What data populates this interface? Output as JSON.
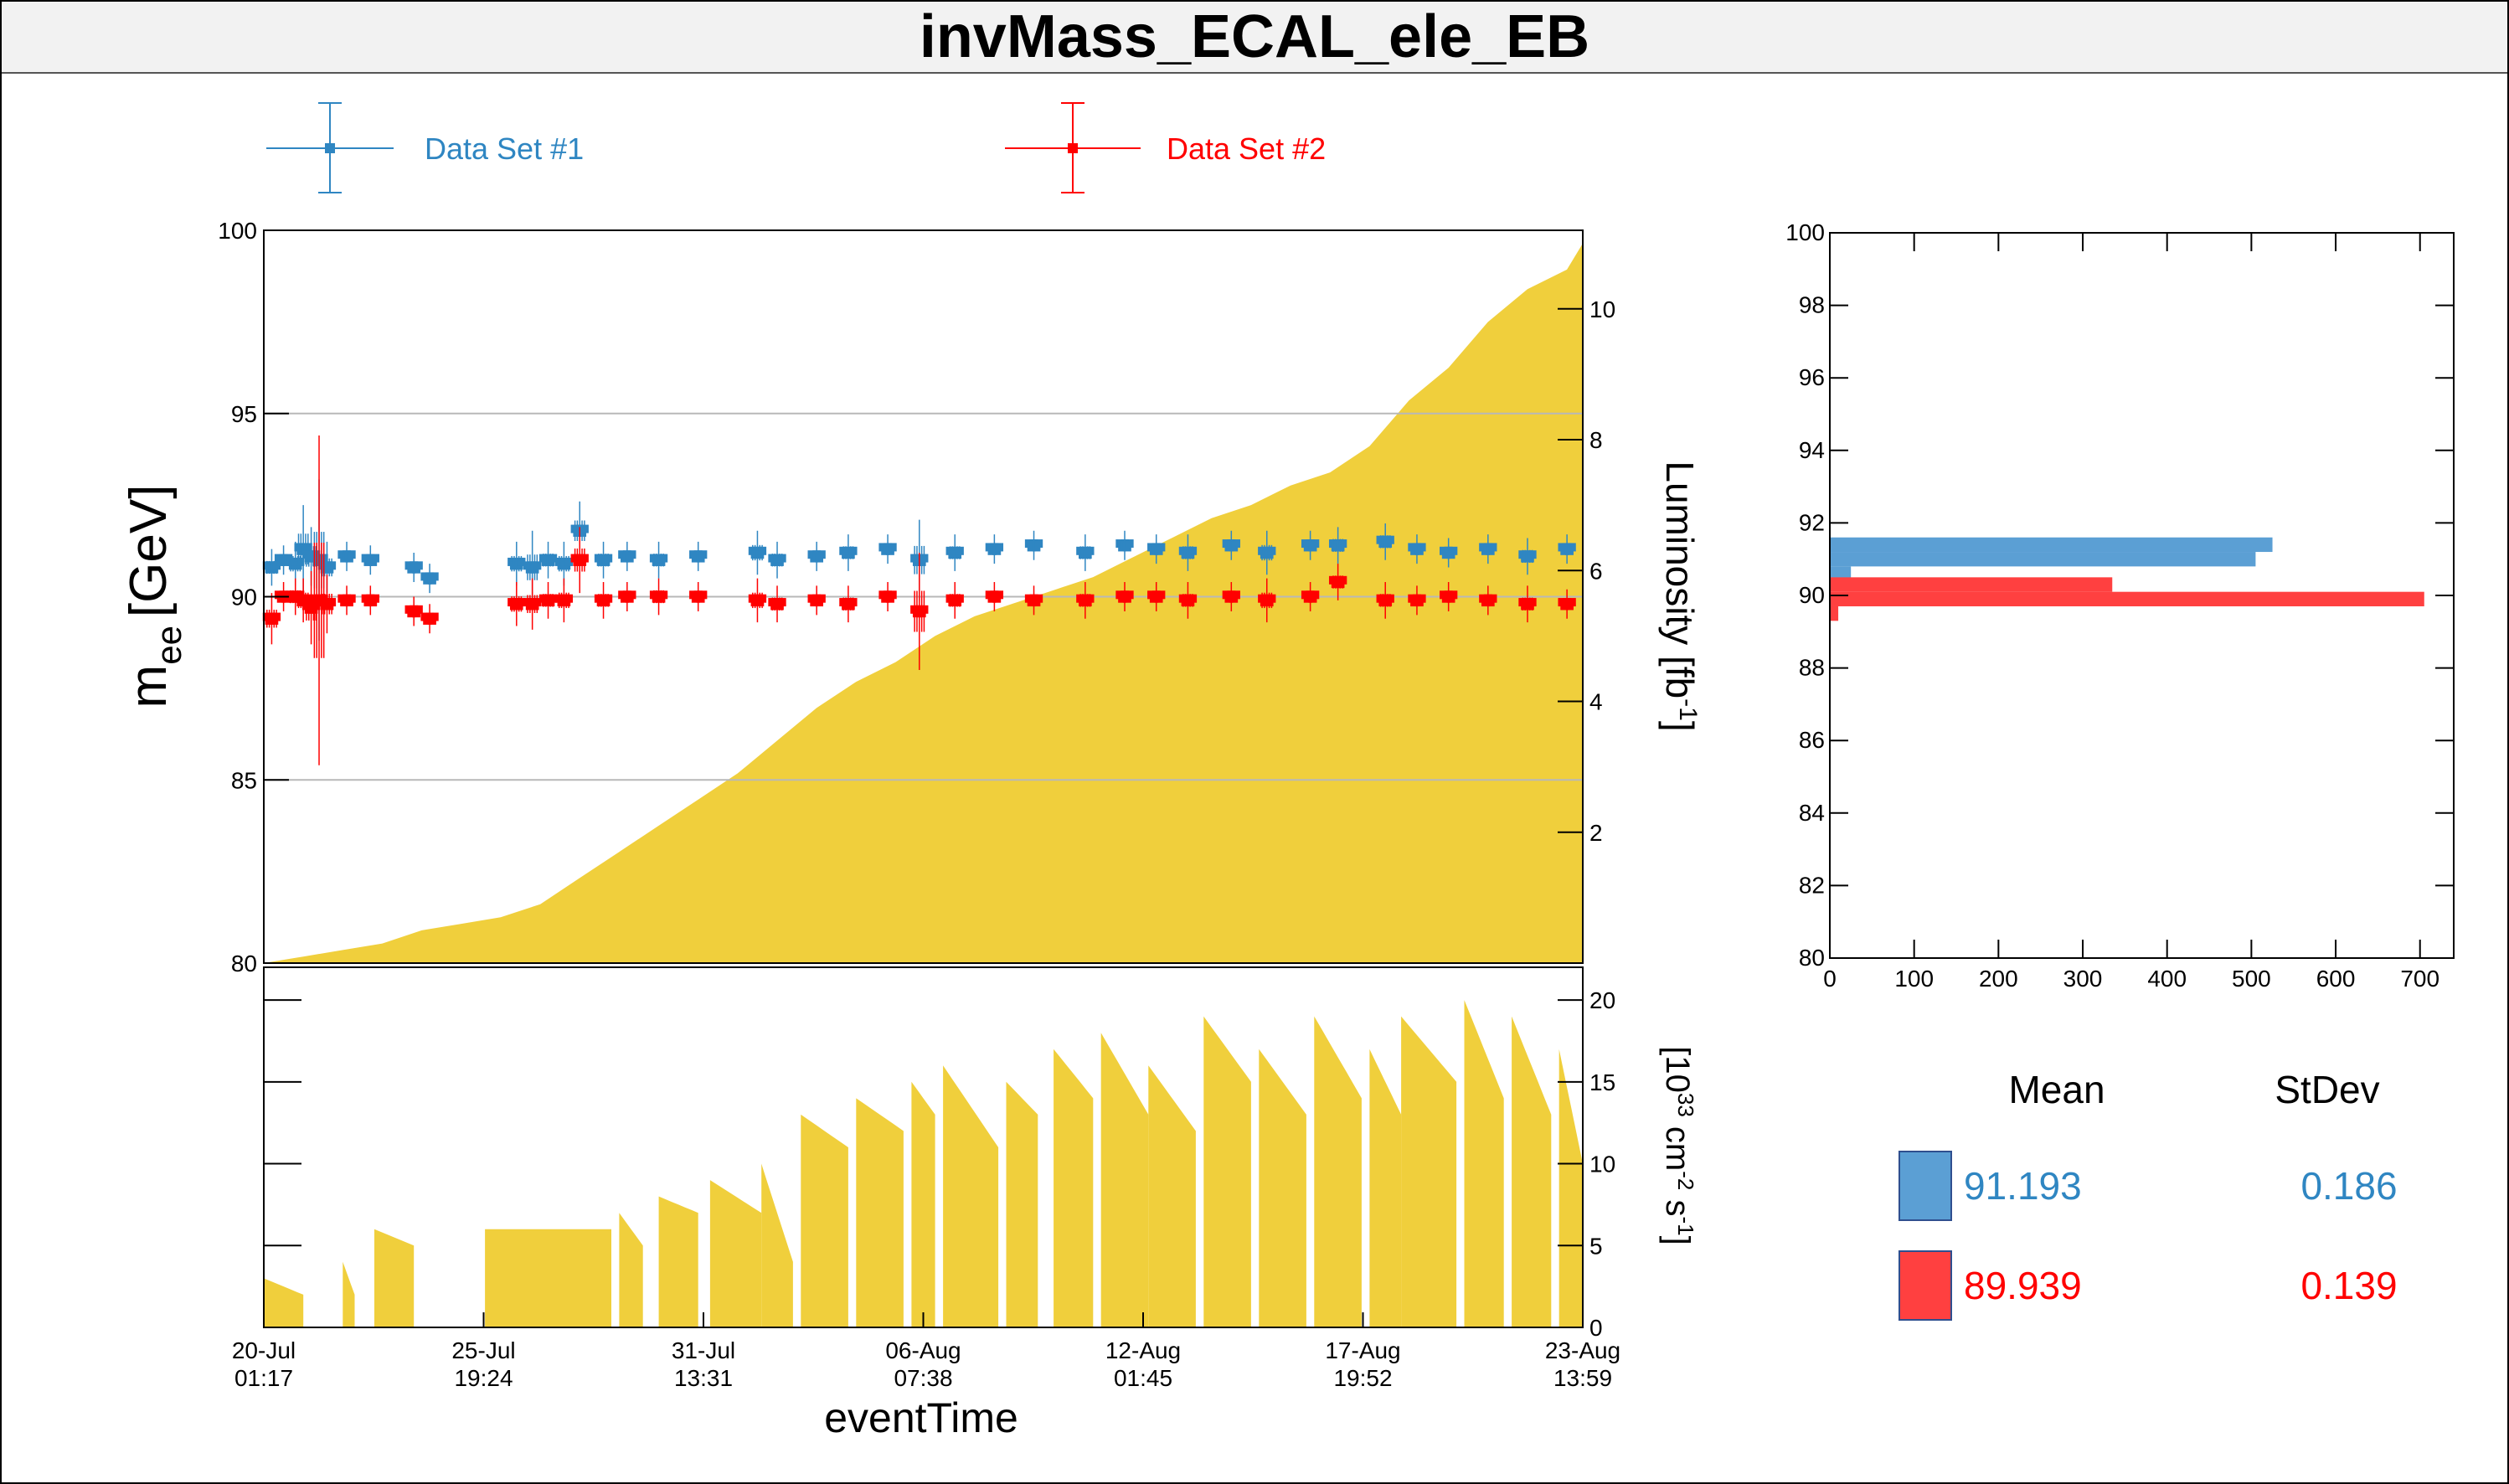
{
  "title": "invMass_ECAL_ele_EB",
  "colors": {
    "set1": "#2f86c2",
    "set1_hist": "#5b9fd4",
    "set2": "#ff0000",
    "set2_hist": "#ff4040",
    "luminosity": "#f0cf3c"
  },
  "legend": [
    {
      "label": "Data Set #1",
      "color": "#2f86c2"
    },
    {
      "label": "Data Set #2",
      "color": "#ff0000"
    }
  ],
  "stats": {
    "mean_header": "Mean",
    "stdev_header": "StDev",
    "rows": [
      {
        "mean": "91.193",
        "stdev": "0.186",
        "color": "#2f86c2"
      },
      {
        "mean": "89.939",
        "stdev": "0.139",
        "color": "#ff0000"
      }
    ]
  },
  "chart_data": [
    {
      "type": "scatter",
      "name": "mass-vs-time",
      "xlabel": "eventTime",
      "ylabel_main": "m",
      "ylabel_sub": "ee",
      "ylabel_unit": "[GeV]",
      "ylim": [
        80,
        100
      ],
      "yticks": [
        "100",
        "95",
        "90",
        "85",
        "80"
      ],
      "x_ticks": [
        {
          "date": "20-Jul",
          "time": "01:17"
        },
        {
          "date": "25-Jul",
          "time": "19:24"
        },
        {
          "date": "31-Jul",
          "time": "13:31"
        },
        {
          "date": "06-Aug",
          "time": "07:38"
        },
        {
          "date": "12-Aug",
          "time": "01:45"
        },
        {
          "date": "17-Aug",
          "time": "19:52"
        },
        {
          "date": "23-Aug",
          "time": "13:59"
        }
      ],
      "series": [
        {
          "name": "Data Set #1",
          "mean": 91.1,
          "spread": 0.18,
          "points": [
            [
              0.2,
              90.8,
              0.5
            ],
            [
              0.5,
              91.0,
              0.4
            ],
            [
              0.8,
              90.9,
              0.6
            ],
            [
              1.0,
              91.3,
              1.2
            ],
            [
              1.2,
              91.1,
              0.8
            ],
            [
              1.4,
              91.0,
              2.2
            ],
            [
              1.6,
              90.8,
              0.7
            ],
            [
              2.1,
              91.1,
              0.4
            ],
            [
              2.7,
              91.0,
              0.4
            ],
            [
              3.8,
              90.8,
              0.4
            ],
            [
              4.2,
              90.5,
              0.4
            ],
            [
              6.4,
              90.9,
              0.6
            ],
            [
              6.8,
              90.8,
              1.0
            ],
            [
              7.2,
              91.0,
              0.5
            ],
            [
              7.6,
              90.9,
              0.6
            ],
            [
              8.0,
              91.8,
              0.8
            ],
            [
              8.6,
              91.0,
              0.5
            ],
            [
              9.2,
              91.1,
              0.4
            ],
            [
              10.0,
              91.0,
              0.5
            ],
            [
              11.0,
              91.1,
              0.4
            ],
            [
              12.5,
              91.2,
              0.6
            ],
            [
              13.0,
              91.0,
              0.5
            ],
            [
              14.0,
              91.1,
              0.4
            ],
            [
              14.8,
              91.2,
              0.5
            ],
            [
              15.8,
              91.3,
              0.4
            ],
            [
              16.6,
              91.0,
              1.1
            ],
            [
              17.5,
              91.2,
              0.5
            ],
            [
              18.5,
              91.3,
              0.4
            ],
            [
              19.5,
              91.4,
              0.4
            ],
            [
              20.8,
              91.2,
              0.5
            ],
            [
              21.8,
              91.4,
              0.4
            ],
            [
              22.6,
              91.3,
              0.4
            ],
            [
              23.4,
              91.2,
              0.5
            ],
            [
              24.5,
              91.4,
              0.4
            ],
            [
              25.4,
              91.2,
              0.6
            ],
            [
              26.5,
              91.4,
              0.4
            ],
            [
              27.2,
              91.4,
              0.5
            ],
            [
              28.4,
              91.5,
              0.5
            ],
            [
              29.2,
              91.3,
              0.4
            ],
            [
              30.0,
              91.2,
              0.4
            ],
            [
              31.0,
              91.3,
              0.4
            ],
            [
              32.0,
              91.1,
              0.5
            ],
            [
              33.0,
              91.3,
              0.4
            ]
          ]
        },
        {
          "name": "Data Set #2",
          "mean": 89.9,
          "spread": 0.14,
          "points": [
            [
              0.2,
              89.4,
              0.7
            ],
            [
              0.5,
              90.0,
              0.4
            ],
            [
              0.8,
              90.0,
              0.5
            ],
            [
              1.0,
              89.9,
              0.6
            ],
            [
              1.2,
              89.7,
              1.0
            ],
            [
              1.4,
              89.9,
              4.5
            ],
            [
              1.6,
              89.8,
              0.8
            ],
            [
              2.1,
              89.9,
              0.4
            ],
            [
              2.7,
              89.9,
              0.4
            ],
            [
              3.8,
              89.6,
              0.4
            ],
            [
              4.2,
              89.4,
              0.4
            ],
            [
              6.4,
              89.8,
              0.6
            ],
            [
              6.8,
              89.8,
              0.7
            ],
            [
              7.2,
              89.9,
              0.5
            ],
            [
              7.6,
              89.9,
              0.6
            ],
            [
              8.0,
              91.0,
              0.9
            ],
            [
              8.6,
              89.9,
              0.5
            ],
            [
              9.2,
              90.0,
              0.4
            ],
            [
              10.0,
              90.0,
              0.5
            ],
            [
              11.0,
              90.0,
              0.4
            ],
            [
              12.5,
              89.9,
              0.6
            ],
            [
              13.0,
              89.8,
              0.5
            ],
            [
              14.0,
              89.9,
              0.4
            ],
            [
              14.8,
              89.8,
              0.5
            ],
            [
              15.8,
              90.0,
              0.4
            ],
            [
              16.6,
              89.6,
              1.6
            ],
            [
              17.5,
              89.9,
              0.5
            ],
            [
              18.5,
              90.0,
              0.4
            ],
            [
              19.5,
              89.9,
              0.4
            ],
            [
              20.8,
              89.9,
              0.5
            ],
            [
              21.8,
              90.0,
              0.4
            ],
            [
              22.6,
              90.0,
              0.4
            ],
            [
              23.4,
              89.9,
              0.5
            ],
            [
              24.5,
              90.0,
              0.4
            ],
            [
              25.4,
              89.9,
              0.6
            ],
            [
              26.5,
              90.0,
              0.4
            ],
            [
              27.2,
              90.4,
              0.5
            ],
            [
              28.4,
              89.9,
              0.5
            ],
            [
              29.2,
              89.9,
              0.4
            ],
            [
              30.0,
              90.0,
              0.4
            ],
            [
              31.0,
              89.9,
              0.4
            ],
            [
              32.0,
              89.8,
              0.5
            ],
            [
              33.0,
              89.8,
              0.4
            ]
          ]
        }
      ]
    },
    {
      "type": "area",
      "name": "integrated-luminosity",
      "ylabel": "Luminosity [fb",
      "ylabel_sup": "-1",
      "ylabel_close": "]",
      "ylim": [
        0,
        11.2
      ],
      "yticks": [
        "2",
        "4",
        "6",
        "8",
        "10"
      ],
      "points": [
        [
          0,
          0
        ],
        [
          1,
          0.1
        ],
        [
          2,
          0.2
        ],
        [
          3,
          0.3
        ],
        [
          4,
          0.5
        ],
        [
          5,
          0.6
        ],
        [
          6,
          0.7
        ],
        [
          7,
          0.9
        ],
        [
          8,
          1.3
        ],
        [
          9,
          1.7
        ],
        [
          10,
          2.1
        ],
        [
          11,
          2.5
        ],
        [
          12,
          2.9
        ],
        [
          13,
          3.4
        ],
        [
          14,
          3.9
        ],
        [
          15,
          4.3
        ],
        [
          16,
          4.6
        ],
        [
          17,
          5.0
        ],
        [
          18,
          5.3
        ],
        [
          19,
          5.5
        ],
        [
          20,
          5.7
        ],
        [
          21,
          5.9
        ],
        [
          22,
          6.2
        ],
        [
          23,
          6.5
        ],
        [
          24,
          6.8
        ],
        [
          25,
          7.0
        ],
        [
          26,
          7.3
        ],
        [
          27,
          7.5
        ],
        [
          28,
          7.9
        ],
        [
          29,
          8.6
        ],
        [
          30,
          9.1
        ],
        [
          31,
          9.8
        ],
        [
          32,
          10.3
        ],
        [
          33,
          10.6
        ],
        [
          33.4,
          11.0
        ]
      ]
    },
    {
      "type": "area",
      "name": "instantaneous-luminosity",
      "ylabel_base": "[10",
      "ylabel_sup1": "33",
      "ylabel_mid": " cm",
      "ylabel_sup2": "-2",
      "ylabel_s": " s",
      "ylabel_sup3": "-1",
      "ylabel_close": "]",
      "ylim": [
        0,
        22
      ],
      "yticks": [
        "0",
        "5",
        "10",
        "15",
        "20"
      ],
      "segments": [
        [
          0.0,
          1.0,
          3,
          2
        ],
        [
          2.0,
          2.3,
          4,
          2
        ],
        [
          2.8,
          3.8,
          6,
          5
        ],
        [
          5.6,
          8.8,
          6,
          6
        ],
        [
          9.0,
          9.6,
          7,
          5
        ],
        [
          10.0,
          11.0,
          8,
          7
        ],
        [
          11.3,
          12.6,
          9,
          7
        ],
        [
          12.6,
          13.4,
          10,
          4
        ],
        [
          13.6,
          14.8,
          13,
          11
        ],
        [
          15.0,
          16.2,
          14,
          12
        ],
        [
          16.4,
          17.0,
          15,
          13
        ],
        [
          17.2,
          18.6,
          16,
          11
        ],
        [
          18.8,
          19.6,
          15,
          13
        ],
        [
          20.0,
          21.0,
          17,
          14
        ],
        [
          21.2,
          22.4,
          18,
          13
        ],
        [
          22.4,
          23.6,
          16,
          12
        ],
        [
          23.8,
          25.0,
          19,
          15
        ],
        [
          25.2,
          26.4,
          17,
          13
        ],
        [
          26.6,
          27.8,
          19,
          14
        ],
        [
          28.0,
          28.8,
          17,
          13
        ],
        [
          28.8,
          30.2,
          19,
          15
        ],
        [
          30.4,
          31.4,
          20,
          14
        ],
        [
          31.6,
          32.6,
          19,
          13
        ],
        [
          32.8,
          33.4,
          17,
          10
        ]
      ]
    },
    {
      "type": "bar",
      "name": "mass-projection",
      "orientation": "horizontal",
      "ylim": [
        80,
        100
      ],
      "xlim": [
        0,
        740
      ],
      "yticks": [
        "80",
        "82",
        "84",
        "86",
        "88",
        "90",
        "92",
        "94",
        "96",
        "98",
        "100"
      ],
      "xticks": [
        "0",
        "100",
        "200",
        "300",
        "400",
        "500",
        "600",
        "700"
      ],
      "series": [
        {
          "name": "Data Set #1",
          "bins": [
            [
              91.2,
              91.6,
              525
            ],
            [
              90.8,
              91.2,
              505
            ],
            [
              90.4,
              90.8,
              25
            ]
          ]
        },
        {
          "name": "Data Set #2",
          "bins": [
            [
              90.1,
              90.5,
              335
            ],
            [
              89.7,
              90.1,
              705
            ],
            [
              89.3,
              89.7,
              10
            ]
          ]
        }
      ]
    }
  ]
}
